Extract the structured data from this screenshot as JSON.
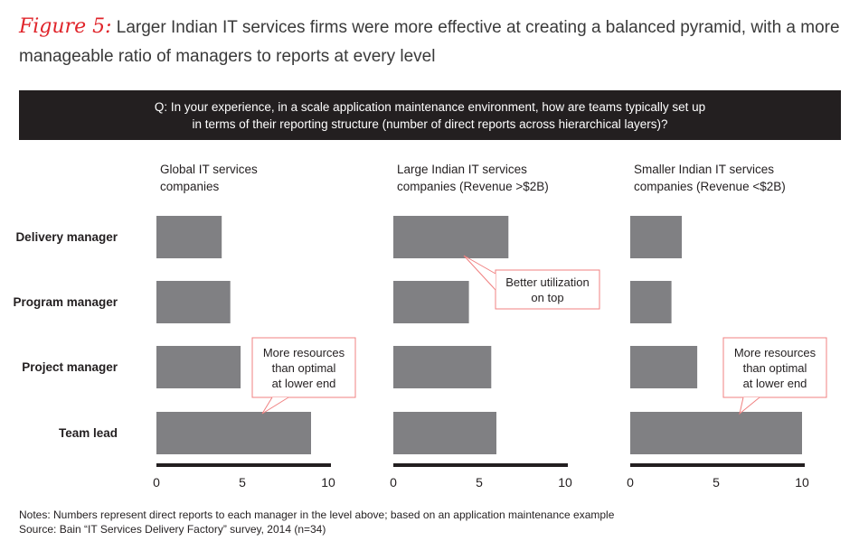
{
  "title": {
    "figure_label": "Figure 5:",
    "text": "Larger Indian IT services firms were more effective at creating a balanced pyramid, with a more manageable ratio of managers to reports at every level"
  },
  "question": {
    "line1": "Q: In your experience, in a scale application maintenance environment, how are teams typically set up",
    "line2": "in terms of their reporting structure (number of direct reports across hierarchical layers)?"
  },
  "colors": {
    "bar": "#808083",
    "axis": "#231f20",
    "callout": "#f08080",
    "figure_label": "#e0252b"
  },
  "chart_data": [
    {
      "type": "bar",
      "orientation": "horizontal",
      "title_lines": [
        "Global IT services",
        "companies"
      ],
      "categories": [
        "Delivery manager",
        "Program manager",
        "Project manager",
        "Team lead"
      ],
      "values": [
        3.8,
        4.3,
        4.9,
        9.0
      ],
      "xlim": [
        0,
        10
      ],
      "xticks": [
        "0",
        "5",
        "10"
      ],
      "annotation": {
        "lines": [
          "More resources",
          "than optimal",
          "at lower end"
        ],
        "target": "Team lead"
      }
    },
    {
      "type": "bar",
      "orientation": "horizontal",
      "title_lines": [
        "Large Indian IT services",
        "companies (Revenue >$2B)"
      ],
      "categories": [
        "Delivery manager",
        "Program manager",
        "Project manager",
        "Team lead"
      ],
      "values": [
        6.7,
        4.4,
        5.7,
        6.0
      ],
      "xlim": [
        0,
        10
      ],
      "xticks": [
        "0",
        "5",
        "10"
      ],
      "annotation": {
        "lines": [
          "Better utilization",
          "on top"
        ],
        "target": "Delivery manager"
      }
    },
    {
      "type": "bar",
      "orientation": "horizontal",
      "title_lines": [
        "Smaller Indian IT services",
        "companies (Revenue <$2B)"
      ],
      "categories": [
        "Delivery manager",
        "Program manager",
        "Project manager",
        "Team lead"
      ],
      "values": [
        3.0,
        2.4,
        3.9,
        10.0
      ],
      "xlim": [
        0,
        10
      ],
      "xticks": [
        "0",
        "5",
        "10"
      ],
      "annotation": {
        "lines": [
          "More resources",
          "than optimal",
          "at lower end"
        ],
        "target": "Team lead"
      }
    }
  ],
  "row_labels": [
    "Delivery manager",
    "Program manager",
    "Project manager",
    "Team lead"
  ],
  "notes": {
    "line1": "Notes: Numbers represent direct reports to each manager in the level above; based on an application maintenance example",
    "line2": "Source: Bain “IT Services Delivery Factory” survey, 2014 (n=34)"
  }
}
